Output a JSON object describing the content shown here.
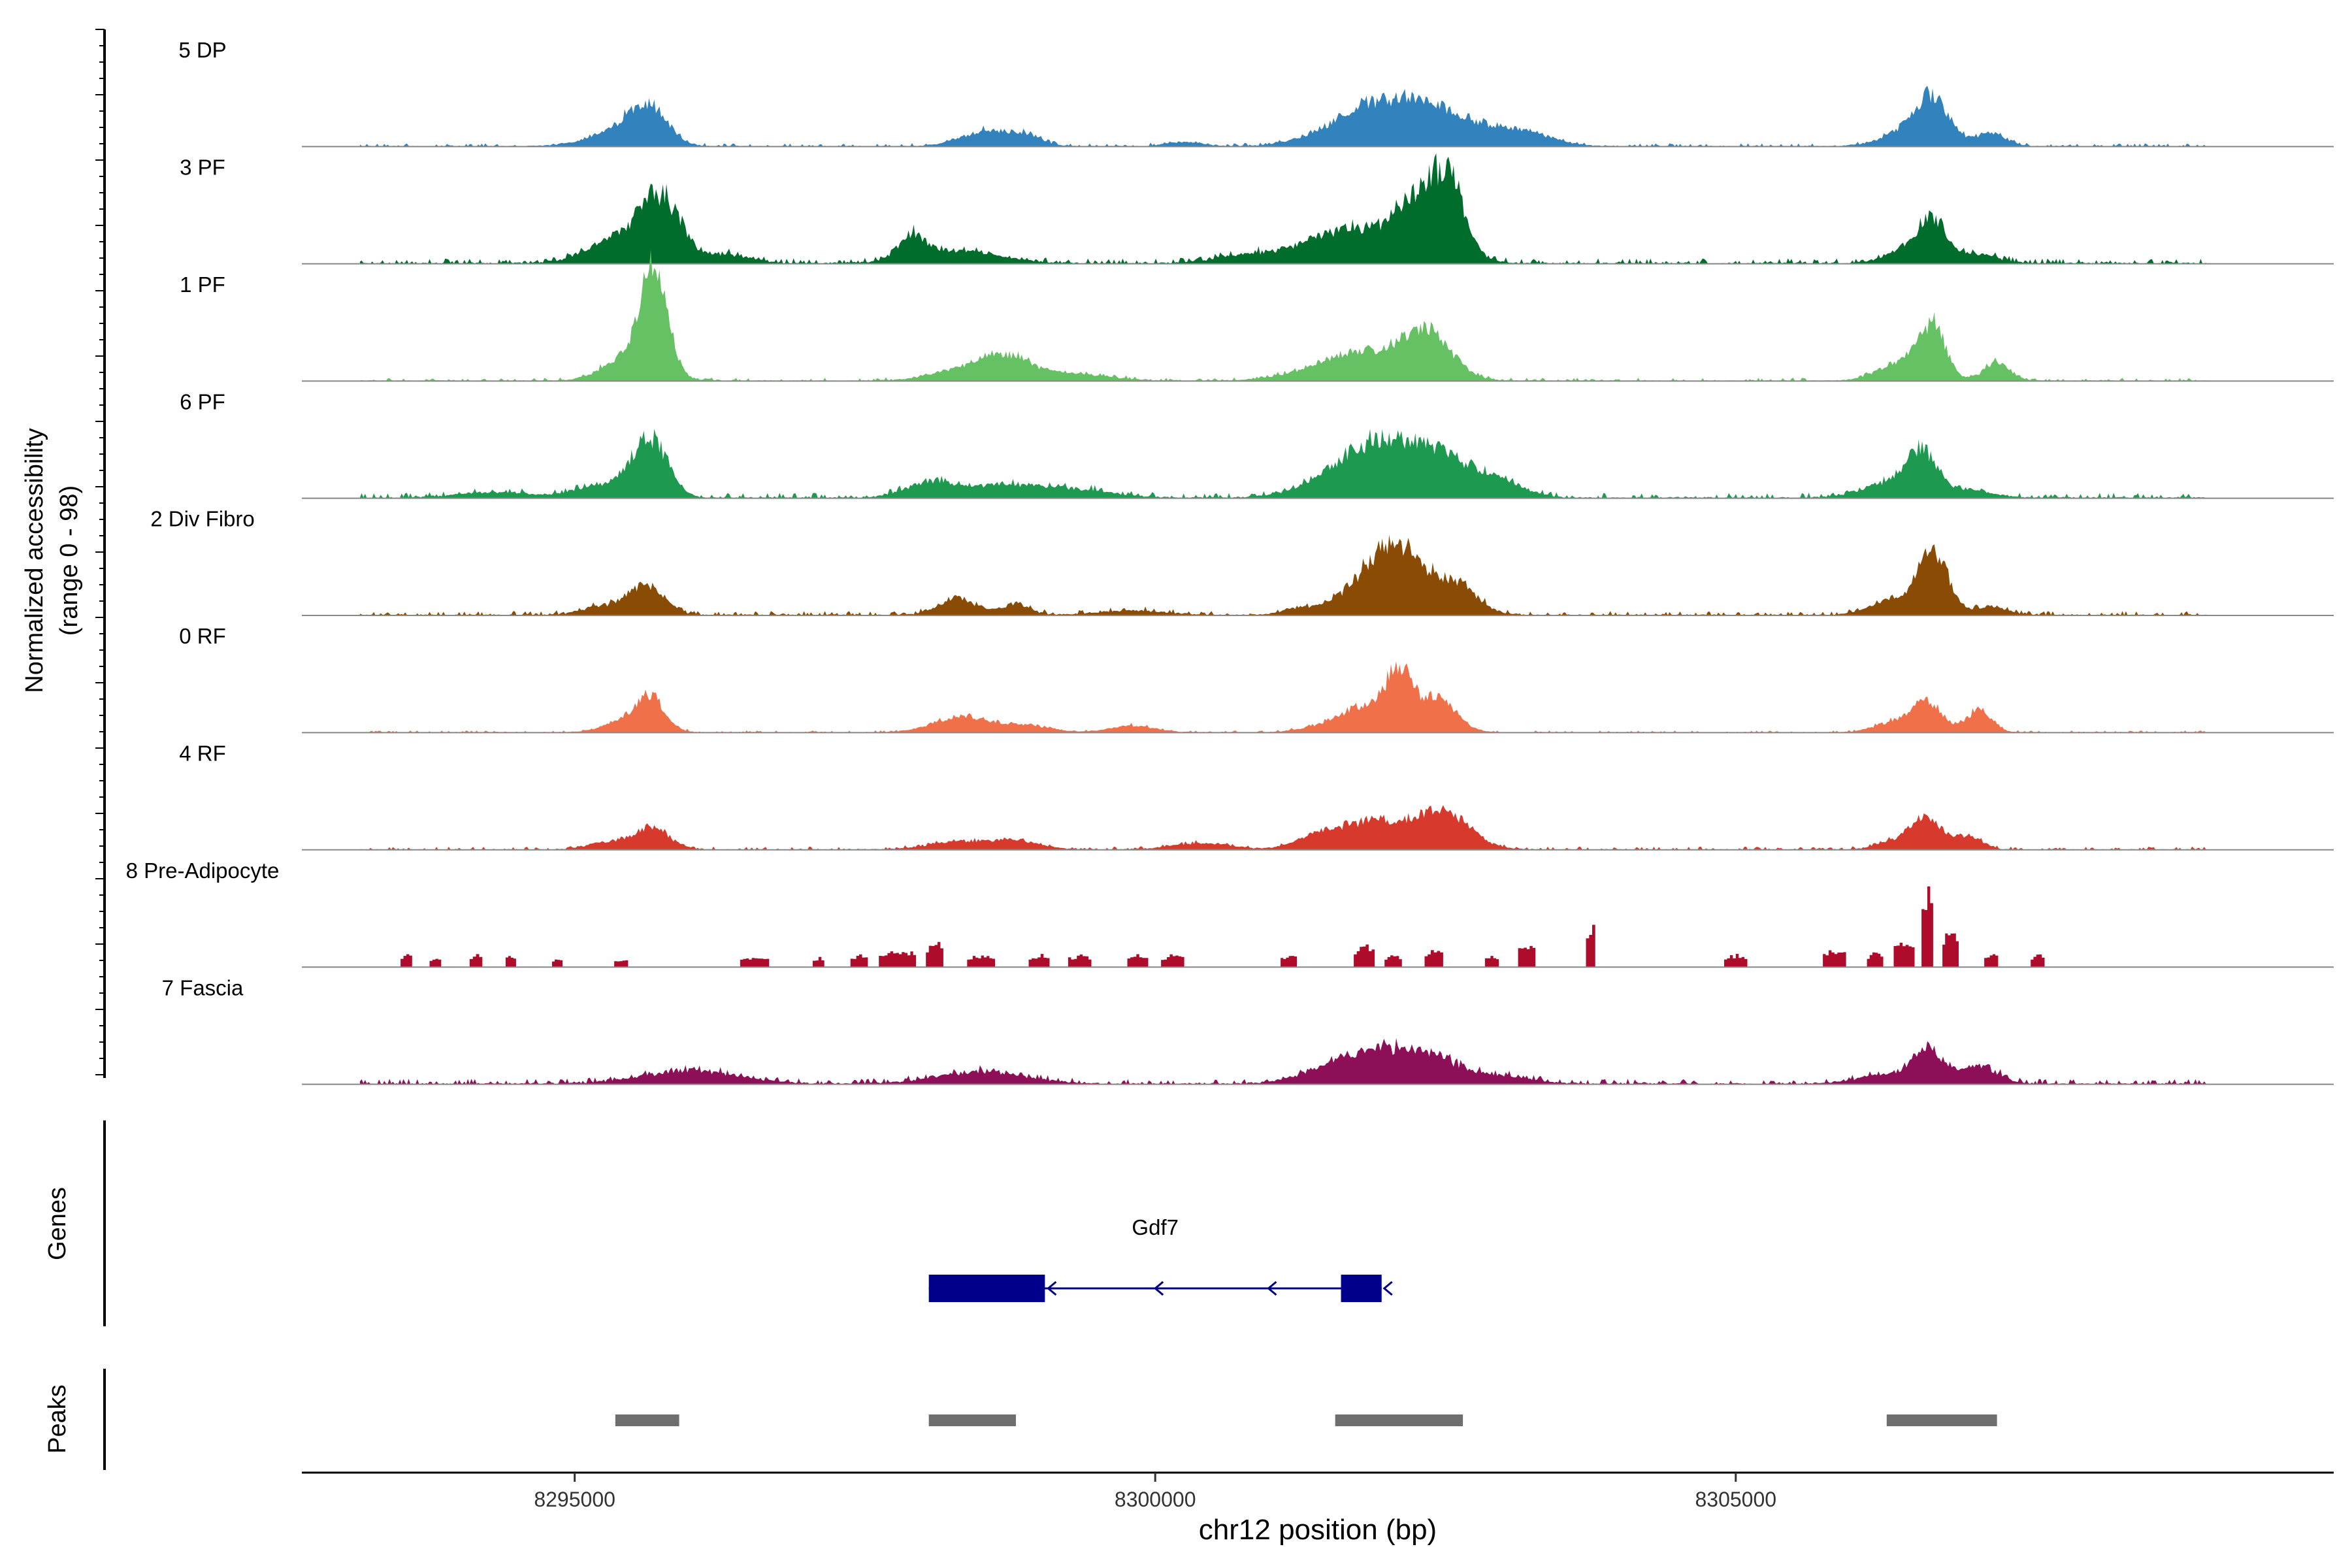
{
  "chart_data": {
    "type": "area",
    "title": "",
    "ylabel_line1": "Normalized accessibility",
    "ylabel_line2": "(range 0 - 98)",
    "yrange": [
      0,
      98
    ],
    "xlabel": "chr12 position (bp)",
    "xlim": [
      8292650,
      8310150
    ],
    "xticks": [
      8295000,
      8300000,
      8305000
    ],
    "xtick_labels": [
      "8295000",
      "8300000",
      "8305000"
    ],
    "tracks": [
      {
        "name": "5 DP",
        "color": "#3182bd",
        "style": "smooth",
        "noise": 3,
        "peaks": [
          [
            8295630,
            160,
            34
          ],
          [
            8295350,
            250,
            12
          ],
          [
            8298550,
            220,
            14
          ],
          [
            8298900,
            130,
            8
          ],
          [
            8300250,
            150,
            4
          ],
          [
            8301900,
            380,
            35
          ],
          [
            8302500,
            380,
            24
          ],
          [
            8303200,
            240,
            10
          ],
          [
            8306700,
            140,
            38
          ],
          [
            8306500,
            220,
            14
          ],
          [
            8307200,
            130,
            12
          ]
        ]
      },
      {
        "name": "3 PF",
        "color": "#006d2c",
        "style": "smooth",
        "noise": 5,
        "peaks": [
          [
            8295750,
            170,
            52
          ],
          [
            8295400,
            260,
            24
          ],
          [
            8296300,
            200,
            8
          ],
          [
            8297900,
            110,
            20
          ],
          [
            8298300,
            350,
            12
          ],
          [
            8300700,
            220,
            5
          ],
          [
            8301700,
            450,
            30
          ],
          [
            8302350,
            220,
            55
          ],
          [
            8302550,
            120,
            40
          ],
          [
            8306700,
            110,
            33
          ],
          [
            8306500,
            180,
            14
          ],
          [
            8307050,
            180,
            9
          ]
        ]
      },
      {
        "name": "1 PF",
        "color": "#66c164",
        "style": "smooth",
        "noise": 3,
        "peaks": [
          [
            8295690,
            110,
            90
          ],
          [
            8295500,
            220,
            25
          ],
          [
            8298400,
            280,
            12
          ],
          [
            8298750,
            200,
            17
          ],
          [
            8299300,
            300,
            6
          ],
          [
            8301800,
            400,
            26
          ],
          [
            8302350,
            200,
            37
          ],
          [
            8306700,
            110,
            44
          ],
          [
            8306450,
            200,
            18
          ],
          [
            8307250,
            110,
            17
          ]
        ]
      },
      {
        "name": "6 PF",
        "color": "#1e9a50",
        "style": "smooth",
        "noise": 5,
        "peaks": [
          [
            8295650,
            150,
            52
          ],
          [
            8295250,
            240,
            12
          ],
          [
            8294300,
            300,
            5
          ],
          [
            8298050,
            200,
            12
          ],
          [
            8298700,
            380,
            12
          ],
          [
            8299400,
            300,
            5
          ],
          [
            8301950,
            330,
            46
          ],
          [
            8302500,
            280,
            30
          ],
          [
            8301500,
            300,
            10
          ],
          [
            8303000,
            200,
            11
          ],
          [
            8306600,
            130,
            36
          ],
          [
            8306350,
            250,
            13
          ],
          [
            8307000,
            200,
            7
          ]
        ]
      },
      {
        "name": "2 Div Fibro",
        "color": "#8a4b05",
        "style": "smooth",
        "noise": 4,
        "peaks": [
          [
            8295620,
            150,
            27
          ],
          [
            8295250,
            180,
            8
          ],
          [
            8298300,
            160,
            15
          ],
          [
            8298800,
            120,
            10
          ],
          [
            8299800,
            300,
            4
          ],
          [
            8301250,
            150,
            6
          ],
          [
            8302100,
            220,
            60
          ],
          [
            8301750,
            200,
            20
          ],
          [
            8302600,
            180,
            26
          ],
          [
            8306700,
            130,
            55
          ],
          [
            8306350,
            180,
            14
          ],
          [
            8307200,
            130,
            8
          ]
        ]
      },
      {
        "name": "0 RF",
        "color": "#f0704a",
        "style": "smooth",
        "noise": 2,
        "peaks": [
          [
            8295650,
            130,
            30
          ],
          [
            8295400,
            180,
            8
          ],
          [
            8298350,
            250,
            14
          ],
          [
            8298900,
            200,
            6
          ],
          [
            8299800,
            200,
            6
          ],
          [
            8301900,
            320,
            26
          ],
          [
            8302100,
            100,
            40
          ],
          [
            8302450,
            150,
            26
          ],
          [
            8306650,
            130,
            27
          ],
          [
            8306350,
            160,
            9
          ],
          [
            8307100,
            110,
            20
          ]
        ]
      },
      {
        "name": "4 RF",
        "color": "#d73a2c",
        "style": "smooth",
        "noise": 3,
        "peaks": [
          [
            8295650,
            160,
            20
          ],
          [
            8295250,
            150,
            6
          ],
          [
            8298300,
            250,
            7
          ],
          [
            8298800,
            200,
            8
          ],
          [
            8300400,
            250,
            6
          ],
          [
            8301900,
            320,
            26
          ],
          [
            8302500,
            220,
            30
          ],
          [
            8301400,
            200,
            8
          ],
          [
            8306650,
            130,
            26
          ],
          [
            8306400,
            160,
            8
          ],
          [
            8307000,
            120,
            12
          ]
        ]
      },
      {
        "name": "8 Pre-Adipocyte",
        "color": "#ae0c2a",
        "style": "blocky",
        "noise": 0,
        "blocks": [
          [
            8293550,
            100,
            10
          ],
          [
            8293800,
            100,
            8
          ],
          [
            8294150,
            110,
            10
          ],
          [
            8294450,
            90,
            10
          ],
          [
            8294850,
            90,
            8
          ],
          [
            8295400,
            120,
            6
          ],
          [
            8296550,
            250,
            8
          ],
          [
            8297100,
            100,
            8
          ],
          [
            8297450,
            150,
            10
          ],
          [
            8297780,
            320,
            14
          ],
          [
            8298100,
            150,
            20
          ],
          [
            8298500,
            240,
            10
          ],
          [
            8299000,
            180,
            10
          ],
          [
            8299350,
            200,
            10
          ],
          [
            8299850,
            180,
            10
          ],
          [
            8300150,
            200,
            10
          ],
          [
            8301150,
            140,
            10
          ],
          [
            8301800,
            180,
            18
          ],
          [
            8302050,
            150,
            10
          ],
          [
            8302400,
            160,
            14
          ],
          [
            8302900,
            120,
            10
          ],
          [
            8303200,
            150,
            20
          ],
          [
            8303750,
            80,
            35
          ],
          [
            8305000,
            200,
            10
          ],
          [
            8305850,
            200,
            14
          ],
          [
            8306200,
            140,
            12
          ],
          [
            8306450,
            180,
            22
          ],
          [
            8306650,
            100,
            65
          ],
          [
            8306850,
            140,
            30
          ],
          [
            8307200,
            120,
            10
          ],
          [
            8307600,
            120,
            10
          ]
        ]
      },
      {
        "name": "7 Fascia",
        "color": "#8c0f57",
        "style": "smooth",
        "noise": 5,
        "peaks": [
          [
            8296000,
            400,
            12
          ],
          [
            8298500,
            380,
            11
          ],
          [
            8301900,
            300,
            26
          ],
          [
            8302400,
            250,
            20
          ],
          [
            8301500,
            300,
            8
          ],
          [
            8303000,
            250,
            6
          ],
          [
            8306650,
            130,
            30
          ],
          [
            8307100,
            150,
            16
          ],
          [
            8306300,
            250,
            8
          ]
        ]
      }
    ],
    "genes": [
      {
        "name": "Gdf7",
        "color": "#00008b",
        "strand": "-",
        "start": 8298050,
        "end": 8301950,
        "exons": [
          [
            8298050,
            8299050
          ],
          [
            8301600,
            8301950
          ]
        ]
      }
    ],
    "peaks_track": {
      "color": "#6e6e6e",
      "regions": [
        [
          8295350,
          8295900
        ],
        [
          8298050,
          8298800
        ],
        [
          8301550,
          8302650
        ],
        [
          8306300,
          8307250
        ]
      ]
    },
    "panel_labels": {
      "genes": "Genes",
      "peaks": "Peaks"
    }
  }
}
